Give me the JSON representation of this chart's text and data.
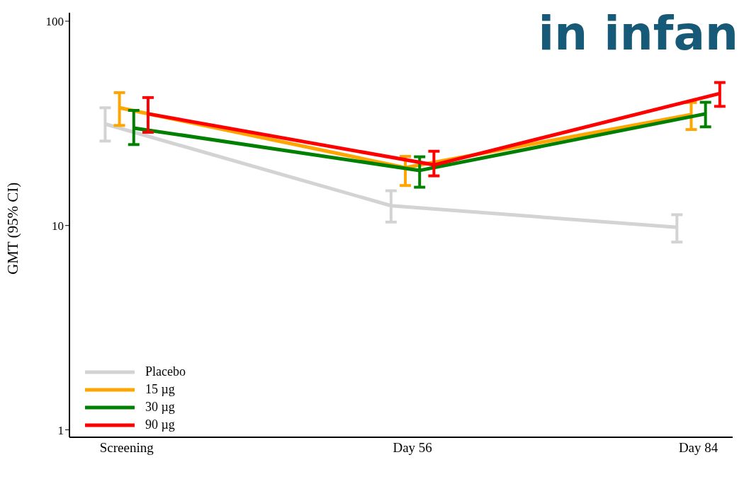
{
  "chart_data": {
    "type": "line",
    "ylabel": "GMT (95% CI)",
    "categories": [
      "Screening",
      "Day 56",
      "Day 84"
    ],
    "series": [
      {
        "name": "Placebo",
        "color": "#d3d3d3",
        "values": [
          31.4,
          12.5,
          9.8
        ],
        "errors": [
          [
            25.9,
            37.7
          ],
          [
            10.4,
            14.8
          ],
          [
            8.3,
            11.3
          ]
        ]
      },
      {
        "name": "15 µg",
        "color": "#ffa500",
        "values": [
          37.7,
          19.2,
          34.9
        ],
        "errors": [
          [
            30.9,
            44.7
          ],
          [
            15.7,
            21.8
          ],
          [
            29.5,
            40
          ]
        ]
      },
      {
        "name": "30 µg",
        "color": "#008000",
        "values": [
          30,
          18.6,
          35.2
        ],
        "errors": [
          [
            24.9,
            36.6
          ],
          [
            15.4,
            21.7
          ],
          [
            30.4,
            40.1
          ]
        ]
      },
      {
        "name": "90 µg",
        "color": "#ff0000",
        "values": [
          35.2,
          19.8,
          44.3
        ],
        "errors": [
          [
            28.6,
            42.3
          ],
          [
            17.5,
            23.1
          ],
          [
            38.3,
            50.1
          ]
        ]
      }
    ],
    "log": true,
    "ylim": [
      0.92,
      110
    ],
    "yticks": [
      1,
      10,
      100
    ],
    "grid": false,
    "legend": "bottom left",
    "marker": "none",
    "line_style": "solid",
    "annotations": [
      "in infan"
    ]
  }
}
